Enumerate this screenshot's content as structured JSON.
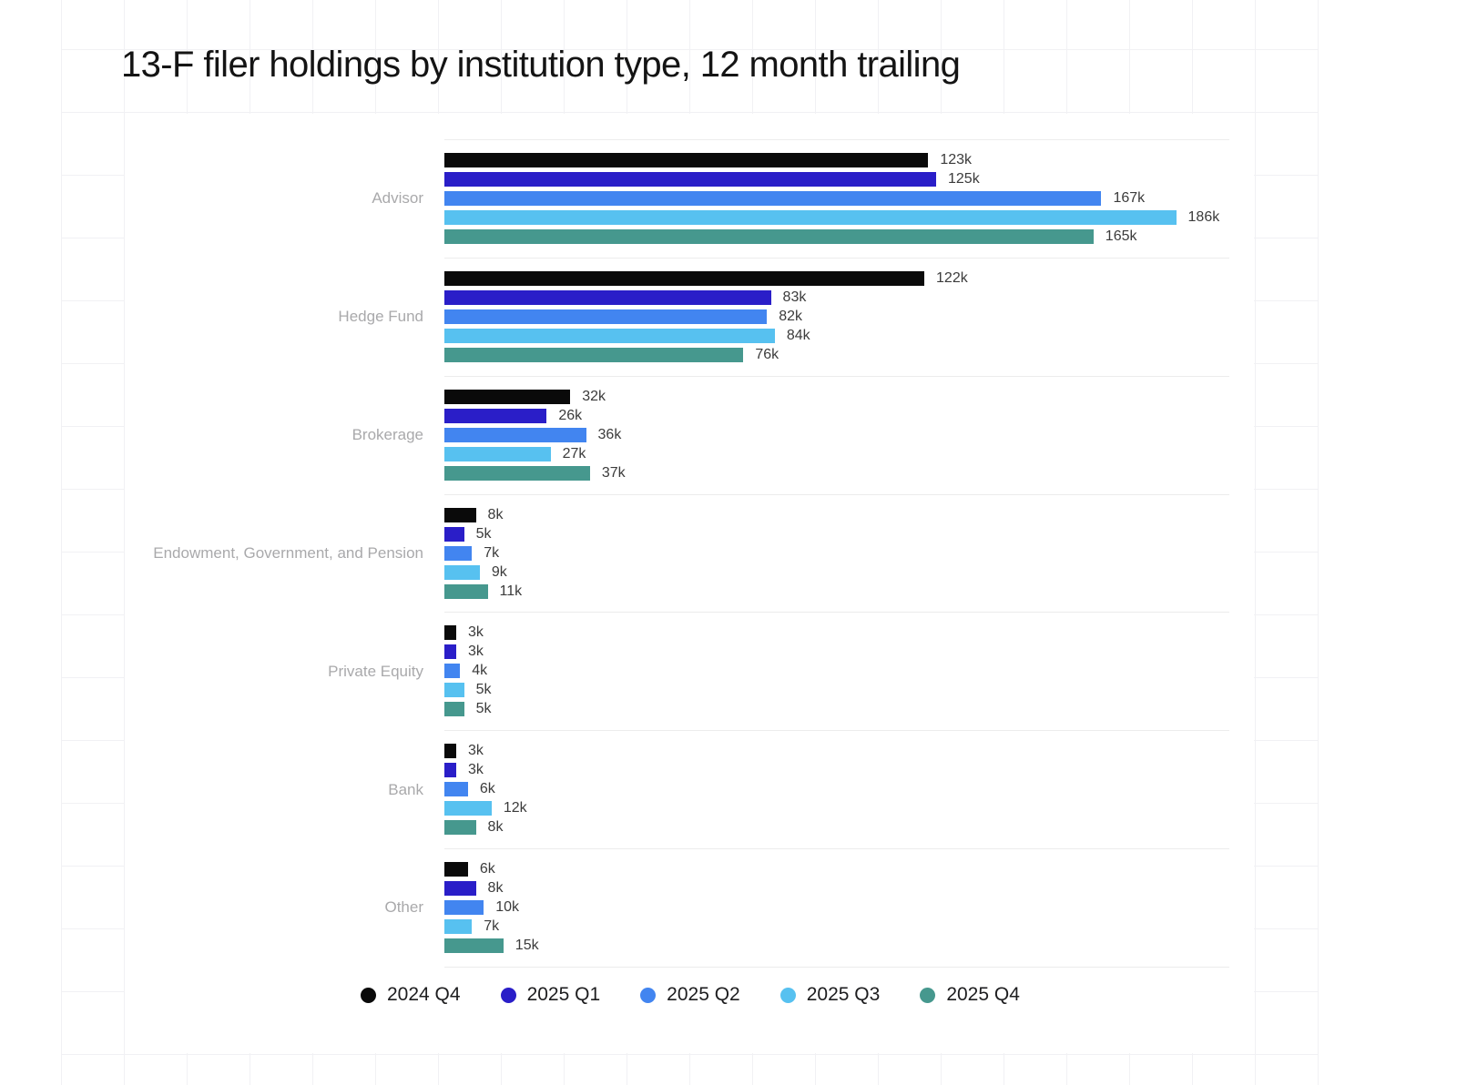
{
  "title": "13-F filer holdings by institution type, 12 month trailing",
  "unit_suffix": "k",
  "colors": {
    "grid_line": "#f1f1f4",
    "separator": "#ececec",
    "category_label": "#a9a9ab",
    "value_label": "#3b3b3b",
    "title_text": "#141414"
  },
  "chart_data": {
    "type": "bar",
    "orientation": "horizontal",
    "title": "13-F filer holdings by institution type, 12 month trailing",
    "categories": [
      "Advisor",
      "Hedge Fund",
      "Brokerage",
      "Endowment, Government, and Pension",
      "Private Equity",
      "Bank",
      "Other"
    ],
    "series": [
      {
        "name": "2024 Q4",
        "color": "#0a0a0a",
        "values": [
          123,
          122,
          32,
          8,
          3,
          3,
          6
        ]
      },
      {
        "name": "2025 Q1",
        "color": "#2a1ec8",
        "values": [
          125,
          83,
          26,
          5,
          3,
          3,
          8
        ]
      },
      {
        "name": "2025 Q2",
        "color": "#4285f0",
        "values": [
          167,
          82,
          36,
          7,
          4,
          6,
          10
        ]
      },
      {
        "name": "2025 Q3",
        "color": "#57c1f0",
        "values": [
          186,
          84,
          27,
          9,
          5,
          12,
          7
        ]
      },
      {
        "name": "2025 Q4",
        "color": "#46988e",
        "values": [
          165,
          76,
          37,
          11,
          5,
          8,
          15
        ]
      }
    ],
    "value_unit": "thousands (k)",
    "value_labels_shown": true,
    "xlabel": "",
    "ylabel": "",
    "axis": {
      "value_min": 0,
      "value_max_labeled": 186
    },
    "legend_position": "bottom",
    "grid": "off"
  }
}
